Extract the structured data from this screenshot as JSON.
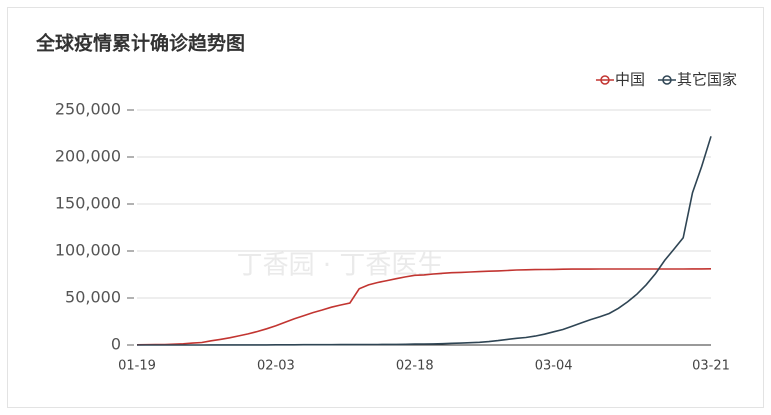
{
  "chart_data": {
    "type": "line",
    "title": "全球疫情累计确诊趋势图",
    "watermark": "丁香园 · 丁香医生",
    "categories": [
      "01-19",
      null,
      null,
      null,
      null,
      null,
      null,
      null,
      null,
      null,
      null,
      null,
      null,
      null,
      null,
      "02-03",
      null,
      null,
      null,
      null,
      null,
      null,
      null,
      null,
      null,
      null,
      null,
      null,
      null,
      null,
      "02-18",
      null,
      null,
      null,
      null,
      null,
      null,
      null,
      null,
      null,
      null,
      null,
      null,
      null,
      null,
      "03-04",
      null,
      null,
      null,
      null,
      null,
      null,
      null,
      null,
      null,
      null,
      null,
      null,
      null,
      null,
      null,
      null,
      "03-21"
    ],
    "series": [
      {
        "name": "中国",
        "color": "#c23531",
        "values": [
          200,
          300,
          440,
          570,
          830,
          1300,
          2000,
          2700,
          4500,
          6000,
          7700,
          9700,
          11800,
          14400,
          17200,
          20400,
          24300,
          28000,
          31200,
          34500,
          37200,
          40200,
          42600,
          44700,
          59800,
          63900,
          66500,
          68500,
          70500,
          72400,
          74200,
          74600,
          75500,
          76300,
          76900,
          77200,
          77700,
          78100,
          78500,
          78800,
          79300,
          79800,
          80000,
          80200,
          80300,
          80400,
          80600,
          80700,
          80700,
          80700,
          80800,
          80800,
          80800,
          80800,
          80800,
          80800,
          80900,
          80900,
          80900,
          80900,
          81000,
          81000,
          81100
        ]
      },
      {
        "name": "其它国家",
        "color": "#2f4554",
        "values": [
          0,
          0,
          10,
          10,
          20,
          30,
          40,
          50,
          60,
          70,
          80,
          100,
          130,
          150,
          150,
          160,
          190,
          220,
          270,
          290,
          310,
          320,
          400,
          440,
          450,
          510,
          530,
          600,
          680,
          790,
          920,
          1070,
          1200,
          1400,
          1770,
          2070,
          2460,
          2920,
          3660,
          4690,
          6010,
          7170,
          8000,
          9500,
          11500,
          14000,
          16500,
          20000,
          23500,
          27000,
          30000,
          33500,
          39000,
          46000,
          54000,
          64000,
          76000,
          90000,
          102000,
          114000,
          162000,
          190000,
          222000
        ]
      }
    ],
    "ylim": [
      0,
      250000
    ],
    "yticks": [
      0,
      {
        "value": 50000,
        "label": "50,000"
      },
      {
        "value": 100000,
        "label": "100,000"
      },
      {
        "value": 150000,
        "label": "150,000"
      },
      {
        "value": 200000,
        "label": "200,000"
      },
      {
        "value": 250000,
        "label": "250,000"
      }
    ],
    "grid": true,
    "legend": "top-right"
  }
}
